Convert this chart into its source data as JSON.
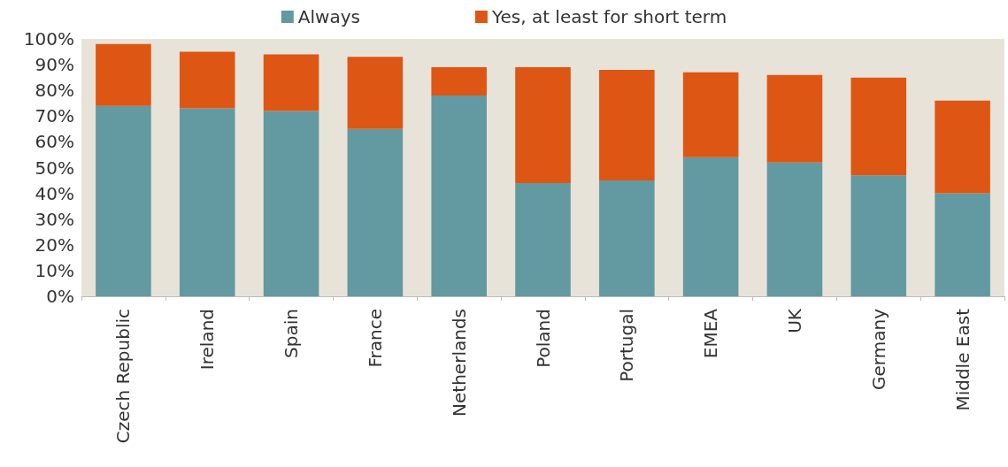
{
  "chart_data": {
    "type": "bar",
    "stacked": true,
    "categories": [
      "Czech Republic",
      "Ireland",
      "Spain",
      "France",
      "Netherlands",
      "Poland",
      "Portugal",
      "EMEA",
      "UK",
      "Germany",
      "Middle East"
    ],
    "series": [
      {
        "name": "Always",
        "color": "#6399a1",
        "values": [
          74,
          73,
          72,
          65,
          78,
          44,
          45,
          54,
          52,
          47,
          40
        ]
      },
      {
        "name": "Yes, at least for short term",
        "color": "#dd5614",
        "values": [
          24,
          22,
          22,
          28,
          11,
          45,
          43,
          33,
          34,
          38,
          36
        ]
      }
    ],
    "ylim": [
      0,
      100
    ],
    "yticks": [
      {
        "value": 0,
        "label": "0%"
      },
      {
        "value": 10,
        "label": "10%"
      },
      {
        "value": 20,
        "label": "20%"
      },
      {
        "value": 30,
        "label": "30%"
      },
      {
        "value": 40,
        "label": "40%"
      },
      {
        "value": 50,
        "label": "50%"
      },
      {
        "value": 60,
        "label": "60%"
      },
      {
        "value": 70,
        "label": "70%"
      },
      {
        "value": 80,
        "label": "80%"
      },
      {
        "value": 90,
        "label": "90%"
      },
      {
        "value": 100,
        "label": "100%"
      }
    ],
    "grid": false,
    "legend": "top"
  }
}
